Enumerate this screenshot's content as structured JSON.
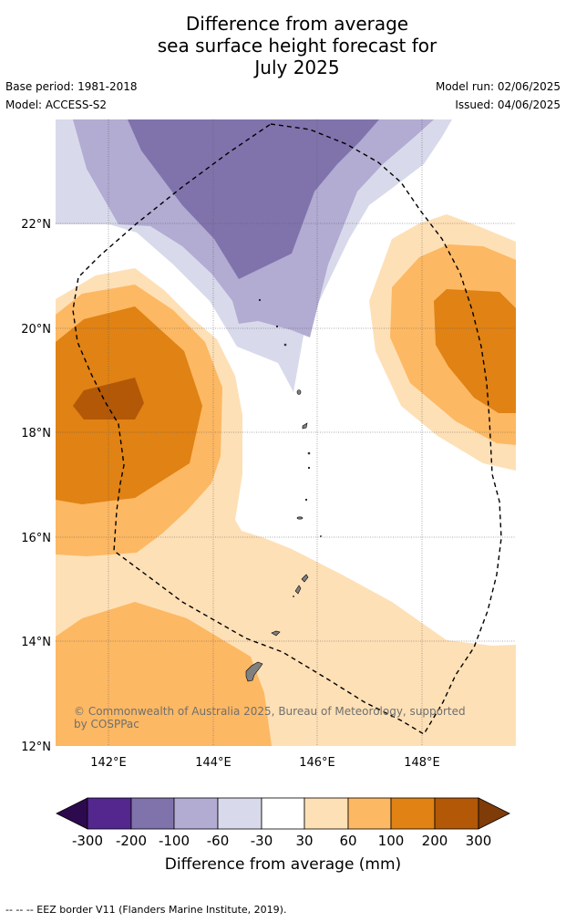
{
  "title": {
    "line1": "Difference from average",
    "line2": "sea surface height forecast for",
    "line3": "July 2025"
  },
  "meta": {
    "base_period": "Base period: 1981-2018",
    "model": "Model: ACCESS-S2",
    "model_run": "Model run: 02/06/2025",
    "issued": "Issued: 04/06/2025"
  },
  "map": {
    "lat_labels": [
      "22°N",
      "20°N",
      "18°N",
      "16°N",
      "14°N",
      "12°N"
    ],
    "lon_labels": [
      "142°E",
      "144°E",
      "146°E",
      "148°E"
    ],
    "copyright": "© Commonwealth of Australia 2025, Bureau of Meteorology, supported by COSPPac",
    "colors": {
      "neg_300": "#2d0a4e",
      "neg_200": "#54278f",
      "neg_100": "#8073ac",
      "neg_60": "#b2abd2",
      "neg_30": "#d8daeb",
      "zero": "#ffffff",
      "pos_30": "#fee0b6",
      "pos_60": "#fdb863",
      "pos_100": "#e08214",
      "pos_200": "#b35806",
      "pos_300": "#7f3b08",
      "land": "#808080",
      "eez": "#000000"
    }
  },
  "colorbar": {
    "ticks": [
      "-300",
      "-200",
      "-100",
      "-60",
      "-30",
      "30",
      "60",
      "100",
      "200",
      "300"
    ],
    "label": "Difference from average (mm)"
  },
  "footer": "--  --  -- EEZ border V11 (Flanders Marine Institute, 2019)."
}
